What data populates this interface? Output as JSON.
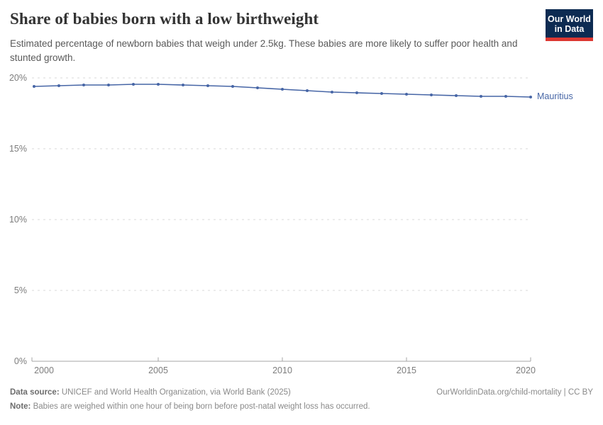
{
  "header": {
    "title": "Share of babies born with a low birthweight",
    "subtitle": "Estimated percentage of newborn babies that weigh under 2.5kg. These babies are more likely to suffer poor health and stunted growth.",
    "logo_line1": "Our World",
    "logo_line2": "in Data"
  },
  "chart_data": {
    "type": "line",
    "title": "Share of babies born with a low birthweight",
    "xlabel": "",
    "ylabel": "",
    "xlim": [
      2000,
      2020
    ],
    "ylim": [
      0,
      20
    ],
    "x_ticks": [
      2000,
      2005,
      2010,
      2015,
      2020
    ],
    "y_ticks": [
      0,
      5,
      10,
      15,
      20
    ],
    "grid": "horizontal-dashed",
    "legend_position": "end-of-line-label",
    "series": [
      {
        "name": "Mauritius",
        "color": "#4766a6",
        "x": [
          2000,
          2001,
          2002,
          2003,
          2004,
          2005,
          2006,
          2007,
          2008,
          2009,
          2010,
          2011,
          2012,
          2013,
          2014,
          2015,
          2016,
          2017,
          2018,
          2019,
          2020
        ],
        "values": [
          19.4,
          19.45,
          19.5,
          19.5,
          19.55,
          19.55,
          19.5,
          19.45,
          19.4,
          19.3,
          19.2,
          19.1,
          19.0,
          18.95,
          18.9,
          18.85,
          18.8,
          18.75,
          18.7,
          18.7,
          18.65
        ]
      }
    ]
  },
  "axes": {
    "y_labels": [
      "20%",
      "15%",
      "10%",
      "5%",
      "0%"
    ],
    "x_labels": [
      "2000",
      "2005",
      "2010",
      "2015",
      "2020"
    ]
  },
  "footer": {
    "data_source_label": "Data source:",
    "data_source_text": "UNICEF and World Health Organization, via World Bank (2025)",
    "link_text": "OurWorldinData.org/child-mortality | CC BY",
    "note_label": "Note:",
    "note_text": "Babies are weighed within one hour of being born before post-natal weight loss has occurred."
  },
  "colors": {
    "accent_line": "#4766a6",
    "grid_line": "#dadada",
    "axis_line": "#a6a6a6",
    "logo_bg": "#0d2b52",
    "logo_stripe": "#dc3832"
  }
}
